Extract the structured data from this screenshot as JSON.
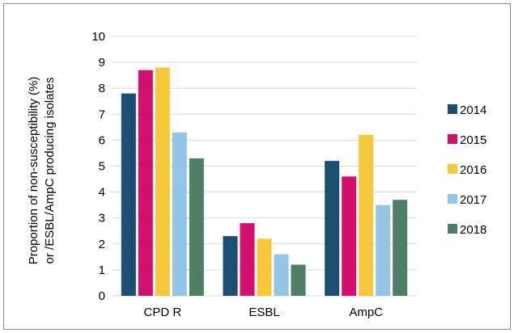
{
  "chart_data": {
    "type": "bar",
    "title": "",
    "ylabel_line1": "Proportion of non-susceptibility (%)",
    "ylabel_line2": "or /ESBL/AmpC producing isolates",
    "xlabel": "",
    "ylim": [
      0,
      10
    ],
    "yticks": [
      0,
      1,
      2,
      3,
      4,
      5,
      6,
      7,
      8,
      9,
      10
    ],
    "grid": true,
    "legend_position": "right",
    "categories": [
      "CPD R",
      "ESBL",
      "AmpC"
    ],
    "series": [
      {
        "name": "2014",
        "color": "#1a4f72",
        "values": [
          7.8,
          2.3,
          5.2
        ]
      },
      {
        "name": "2015",
        "color": "#d4106e",
        "values": [
          8.7,
          2.8,
          4.6
        ]
      },
      {
        "name": "2016",
        "color": "#f6c83a",
        "values": [
          8.8,
          2.2,
          6.2
        ]
      },
      {
        "name": "2017",
        "color": "#93c6e6",
        "values": [
          6.3,
          1.6,
          3.5
        ]
      },
      {
        "name": "2018",
        "color": "#4e7f66",
        "values": [
          5.3,
          1.2,
          3.7
        ]
      }
    ]
  }
}
